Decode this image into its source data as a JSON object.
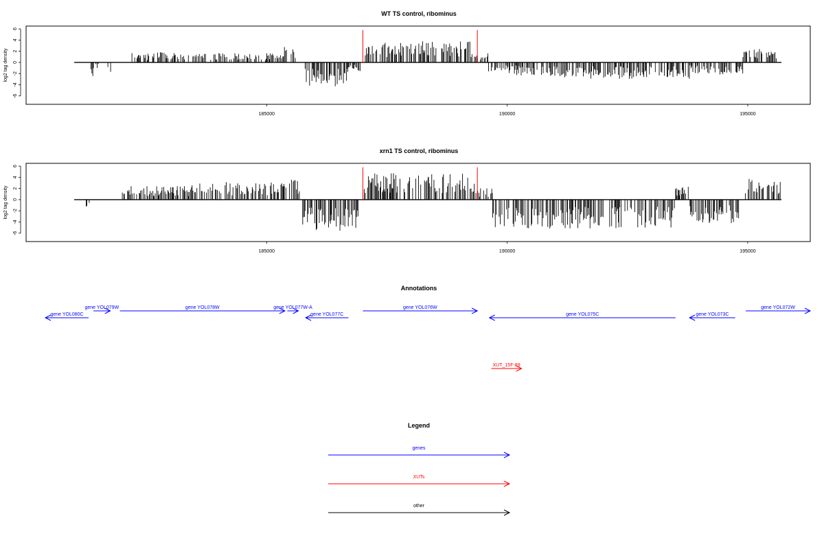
{
  "colors": {
    "gene": "#0000ff",
    "xut": "#ff0000",
    "other": "#000000",
    "bar": "#000000",
    "marker": "#ff0000"
  },
  "chart_data": [
    {
      "type": "bar",
      "title": "WT TS control, ribominus",
      "ylabel": "log2 tag density",
      "xlim": [
        180000,
        196300
      ],
      "ylim": [
        -7.5,
        6.5
      ],
      "yticks": [
        6,
        4,
        2,
        0,
        -2,
        -4,
        -6
      ],
      "xticks": [
        185000,
        190000,
        195000
      ],
      "data_start": 181000,
      "data_end": 195700,
      "markers": [
        187000,
        189380
      ],
      "series": [
        {
          "range": [
            181350,
            181400
          ],
          "y": -2.5
        },
        {
          "range": [
            181450,
            181500
          ],
          "y": -1.0
        },
        {
          "range": [
            181700,
            181760
          ],
          "y": -2.0
        },
        {
          "range": [
            182200,
            182900
          ],
          "y": 1.8
        },
        {
          "range": [
            182900,
            185300
          ],
          "y": 1.6
        },
        {
          "range": [
            185300,
            185600
          ],
          "y": 2.8
        },
        {
          "range": [
            185800,
            186700
          ],
          "y": -4.2
        },
        {
          "range": [
            186700,
            186950
          ],
          "y": -1.5
        },
        {
          "range": [
            187050,
            189300
          ],
          "y": 3.6
        },
        {
          "range": [
            189300,
            189600
          ],
          "y": 1.8
        },
        {
          "range": [
            189600,
            190900
          ],
          "y": -2.2
        },
        {
          "range": [
            190900,
            193800
          ],
          "y": -2.8
        },
        {
          "range": [
            193800,
            194900
          ],
          "y": -2.1
        },
        {
          "range": [
            194900,
            195600
          ],
          "y": 2.4
        }
      ]
    },
    {
      "type": "bar",
      "title": "xrn1 TS control, ribominus",
      "ylabel": "log2 tag density",
      "xlim": [
        180000,
        196300
      ],
      "ylim": [
        -7.5,
        6.5
      ],
      "yticks": [
        6,
        4,
        2,
        0,
        -2,
        -4,
        -6
      ],
      "xticks": [
        185000,
        190000,
        195000
      ],
      "data_start": 181000,
      "data_end": 195700,
      "markers": [
        187000,
        189380
      ],
      "series": [
        {
          "range": [
            181250,
            181400
          ],
          "y": -1.5
        },
        {
          "range": [
            182000,
            183400
          ],
          "y": 2.3
        },
        {
          "range": [
            183400,
            185500
          ],
          "y": 3.0
        },
        {
          "range": [
            185500,
            185700
          ],
          "y": 3.6
        },
        {
          "range": [
            185750,
            186900
          ],
          "y": -5.4
        },
        {
          "range": [
            187000,
            189350
          ],
          "y": 4.6
        },
        {
          "range": [
            189350,
            189700
          ],
          "y": 2.0
        },
        {
          "range": [
            189700,
            193500
          ],
          "y": -5.0
        },
        {
          "range": [
            193500,
            193800
          ],
          "y": 2.2
        },
        {
          "range": [
            193800,
            194850
          ],
          "y": -4.0
        },
        {
          "range": [
            194950,
            195700
          ],
          "y": 4.0
        }
      ]
    }
  ],
  "annotations": {
    "title": "Annotations",
    "items": [
      {
        "label": "gene YOL079W",
        "type": "gene",
        "dir": "right",
        "row": 0,
        "start": 181400,
        "end": 181750
      },
      {
        "label": "gene YOL080C",
        "type": "gene",
        "dir": "left",
        "row": 1,
        "start": 180400,
        "end": 181300
      },
      {
        "label": "gene YOL078W",
        "type": "gene",
        "dir": "right",
        "row": 0,
        "start": 181950,
        "end": 185380
      },
      {
        "label": "gene YOL077W-A",
        "type": "gene",
        "dir": "right",
        "row": 0,
        "start": 185430,
        "end": 185660
      },
      {
        "label": "gene YOL077C",
        "type": "gene",
        "dir": "left",
        "row": 1,
        "start": 185810,
        "end": 186700
      },
      {
        "label": "gene YOL076W",
        "type": "gene",
        "dir": "right",
        "row": 0,
        "start": 187000,
        "end": 189380
      },
      {
        "label": "gene YOL075C",
        "type": "gene",
        "dir": "left",
        "row": 1,
        "start": 189630,
        "end": 193500
      },
      {
        "label": "gene YOL073C",
        "type": "gene",
        "dir": "left",
        "row": 1,
        "start": 193790,
        "end": 194740
      },
      {
        "label": "gene YOL072W",
        "type": "gene",
        "dir": "right",
        "row": 0,
        "start": 194960,
        "end": 196300
      },
      {
        "label": "XUT_15F-89",
        "type": "xut",
        "dir": "right",
        "row": 7,
        "start": 189670,
        "end": 190300
      }
    ]
  },
  "legend": {
    "title": "Legend",
    "items": [
      {
        "label": "genes",
        "type": "gene"
      },
      {
        "label": "XUTs",
        "type": "xut"
      },
      {
        "label": "other",
        "type": "other"
      }
    ]
  }
}
